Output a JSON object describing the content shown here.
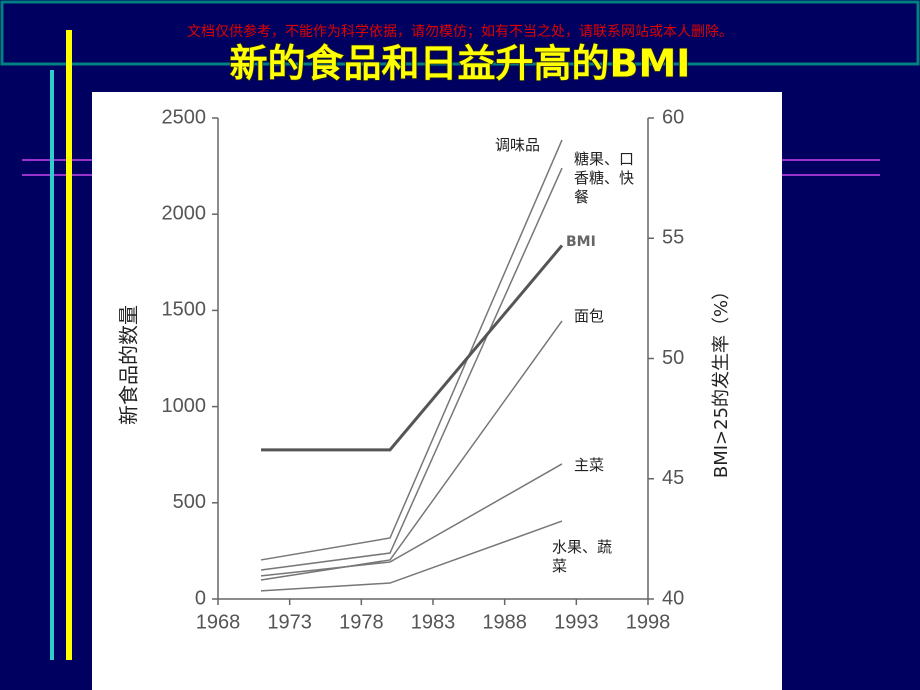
{
  "header": {
    "notice": "文档仅供参考，不能作为科学依据，请勿模仿；如有不当之处，请联系网站或本人删除。",
    "title": "新的食品和日益升高的BMI"
  },
  "chart_data": {
    "type": "line",
    "y_label": "新食品的数量",
    "y2_label": "BMI>25的发生率（%）",
    "xlim": [
      1968,
      1998
    ],
    "xticks": [
      1968,
      1973,
      1978,
      1983,
      1988,
      1993,
      1998
    ],
    "ylim": [
      0,
      2500
    ],
    "yticks": [
      0,
      500,
      1000,
      1500,
      2000,
      2500
    ],
    "y2lim": [
      40,
      60
    ],
    "y2ticks": [
      40,
      45,
      50,
      55,
      60
    ],
    "series": [
      {
        "name": "调味品",
        "color": "#777777",
        "line_width": 1.5,
        "x": [
          1971,
          1980,
          1992
        ],
        "values": [
          203,
          317,
          2386
        ]
      },
      {
        "name": "糖果、口香糖、快餐",
        "color": "#777777",
        "line_width": 1.5,
        "x": [
          1971,
          1980,
          1992
        ],
        "values": [
          151,
          239,
          2240
        ]
      },
      {
        "name": "BMI",
        "color": "#555555",
        "line_width": 3,
        "axis": "y2",
        "x": [
          1971,
          1980,
          1992
        ],
        "values": [
          46.2,
          46.2,
          54.7
        ]
      },
      {
        "name": "面包",
        "color": "#777777",
        "line_width": 1.5,
        "x": [
          1971,
          1980,
          1992
        ],
        "values": [
          99,
          203,
          1445
        ]
      },
      {
        "name": "主菜",
        "color": "#777777",
        "line_width": 1.5,
        "x": [
          1971,
          1980,
          1992
        ],
        "values": [
          120,
          192,
          702
        ]
      },
      {
        "name": "水果、蔬菜",
        "color": "#777777",
        "line_width": 1.5,
        "x": [
          1971,
          1980,
          1992
        ],
        "values": [
          42,
          83,
          405
        ]
      }
    ]
  }
}
